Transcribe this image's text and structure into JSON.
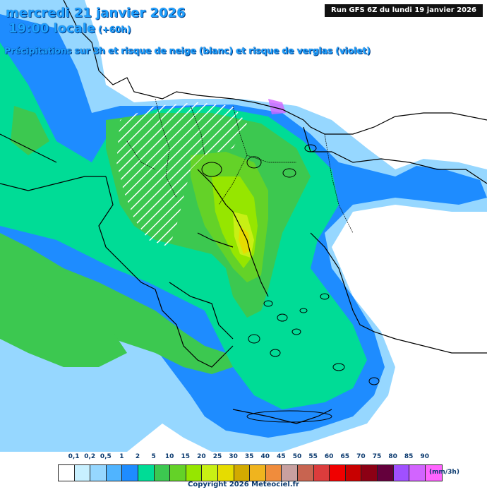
{
  "header": {
    "date": "mercredi 21 janvier 2026",
    "time": "19:00 locale",
    "offset": "(+60h)",
    "legend_title": "Précipitations sur 3h et risque de neige (blanc) et risque de verglas (violet)",
    "run_info": "Run GFS 6Z du lundi 19 janvier 2026"
  },
  "scale": {
    "unit": "(mm/3h)",
    "ticks": [
      "0,1",
      "0,2",
      "0,5",
      "1",
      "2",
      "5",
      "10",
      "15",
      "20",
      "25",
      "30",
      "35",
      "40",
      "45",
      "50",
      "55",
      "60",
      "65",
      "70",
      "75",
      "80",
      "85",
      "90"
    ],
    "colors": [
      "#ffffff",
      "#c8f0ff",
      "#96d7ff",
      "#50b4ff",
      "#1e8cff",
      "#00dc96",
      "#3cc850",
      "#64d228",
      "#96e600",
      "#c8f014",
      "#e6dc00",
      "#d2aa00",
      "#f0b41e",
      "#f08c3c",
      "#c8a0a0",
      "#c86450",
      "#dc3c3c",
      "#f00000",
      "#c80000",
      "#8c0014",
      "#64003c",
      "#a050ff",
      "#d264ff",
      "#ff64ff"
    ]
  },
  "footer": {
    "copyright": "Copyright 2026 Meteociel.fr"
  }
}
